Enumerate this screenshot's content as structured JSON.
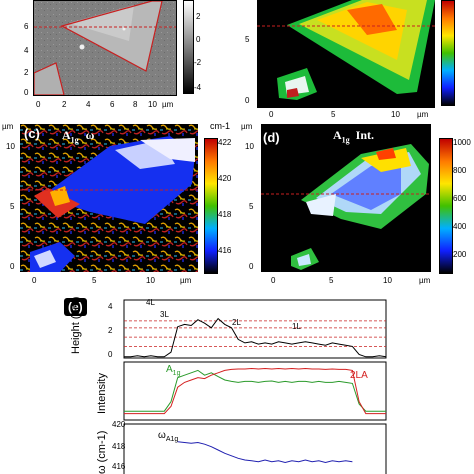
{
  "panels": {
    "a": {
      "colorbar_ticks": [
        "2",
        "0",
        "-2",
        "-4"
      ],
      "y_ticks": [
        "6",
        "4",
        "2",
        "0"
      ],
      "x_ticks": [
        "0",
        "2",
        "4",
        "6",
        "8",
        "10"
      ],
      "x_unit": "µm"
    },
    "b": {
      "y_ticks": [
        "5",
        "0"
      ],
      "x_ticks": [
        "0",
        "5",
        "10"
      ],
      "x_unit": "µm"
    },
    "c": {
      "tag": "(c)",
      "label_main": "A",
      "label_sub": "1g",
      "label_suffix": "ω",
      "y_unit": "µm",
      "y_ticks": [
        "10",
        "5",
        "0"
      ],
      "x_ticks": [
        "0",
        "5",
        "10"
      ],
      "x_unit": "µm",
      "colorbar_unit": "cm-1",
      "colorbar_ticks": [
        "422",
        "420",
        "418",
        "416"
      ]
    },
    "d": {
      "tag": "(d)",
      "label_main": "A",
      "label_sub": "1g",
      "label_suffix": "Int.",
      "y_unit": "µm",
      "y_ticks": [
        "10",
        "5",
        "0"
      ],
      "x_ticks": [
        "0",
        "5",
        "10"
      ],
      "x_unit": "µm",
      "colorbar_ticks": [
        "1000",
        "800",
        "600",
        "400",
        "200"
      ]
    },
    "e": {
      "tag": "(e)",
      "height": {
        "ylabel": "Height (nm)",
        "y_ticks": [
          "4",
          "2",
          "0"
        ],
        "layer_labels": [
          "4L",
          "3L",
          "2L",
          "1L"
        ]
      },
      "intensity": {
        "ylabel": "Intensity",
        "series_a_main": "A",
        "series_a_sub": "1g",
        "series_b": "2LA"
      },
      "omega": {
        "ylabel": "ω (cm-1)",
        "y_ticks": [
          "420",
          "418",
          "416"
        ],
        "series_main": "ω",
        "series_sub": "A1g"
      }
    }
  },
  "chart_data": [
    {
      "type": "line",
      "ylabel": "Height (nm)",
      "ylim": [
        0,
        5
      ],
      "series": [
        {
          "values": [
            0.1,
            0.1,
            0.2,
            0.1,
            0.2,
            0.1,
            0.1,
            0.5,
            2.7,
            2.9,
            2.8,
            3.3,
            3.0,
            2.6,
            3.4,
            2.9,
            2.6,
            1.6,
            1.3,
            1.4,
            1.2,
            1.3,
            1.2,
            1.4,
            1.3,
            1.2,
            1.3,
            1.4,
            1.3,
            1.2,
            1.1,
            1.3,
            1.2,
            1.1,
            1.0,
            0.3,
            0.1,
            0.1,
            0.2,
            0.1
          ]
        }
      ]
    },
    {
      "type": "line",
      "ylabel": "Intensity",
      "series": [
        {
          "name": "A1g",
          "color": "#2a9a2a",
          "values": [
            0.1,
            0.1,
            0.1,
            0.1,
            0.1,
            0.1,
            0.1,
            0.3,
            0.8,
            0.85,
            0.9,
            0.95,
            0.85,
            0.9,
            0.82,
            0.75,
            0.72,
            0.7,
            0.72,
            0.72,
            0.7,
            0.72,
            0.73,
            0.7,
            0.72,
            0.7,
            0.72,
            0.72,
            0.7,
            0.72,
            0.7,
            0.7,
            0.72,
            0.7,
            0.68,
            0.25,
            0.1,
            0.1,
            0.1,
            0.1
          ]
        },
        {
          "name": "2LA",
          "color": "#d42020",
          "values": [
            0.05,
            0.05,
            0.05,
            0.05,
            0.05,
            0.05,
            0.05,
            0.2,
            0.6,
            0.7,
            0.75,
            0.8,
            0.78,
            0.85,
            0.9,
            0.95,
            0.97,
            0.98,
            0.98,
            0.99,
            0.98,
            0.99,
            0.98,
            0.99,
            0.98,
            0.99,
            0.98,
            0.99,
            0.98,
            0.98,
            0.97,
            0.98,
            0.97,
            0.97,
            0.95,
            0.3,
            0.05,
            0.05,
            0.05,
            0.05
          ]
        }
      ]
    },
    {
      "type": "line",
      "ylabel": "ω (cm-1)",
      "ylim": [
        415,
        421
      ],
      "series": [
        {
          "name": "ωA1g",
          "color": "#2020b0",
          "values": [
            null,
            null,
            null,
            null,
            null,
            null,
            null,
            null,
            419.6,
            419.5,
            419.4,
            419.5,
            419.3,
            419.0,
            418.6,
            418.2,
            417.9,
            417.6,
            417.4,
            417.3,
            417.2,
            417.4,
            417.2,
            417.3,
            417.1,
            417.3,
            417.2,
            417.4,
            417.2,
            417.3,
            417.1,
            417.3,
            417.2,
            417.3,
            417.2,
            null,
            null,
            null,
            null,
            null
          ]
        }
      ]
    }
  ]
}
